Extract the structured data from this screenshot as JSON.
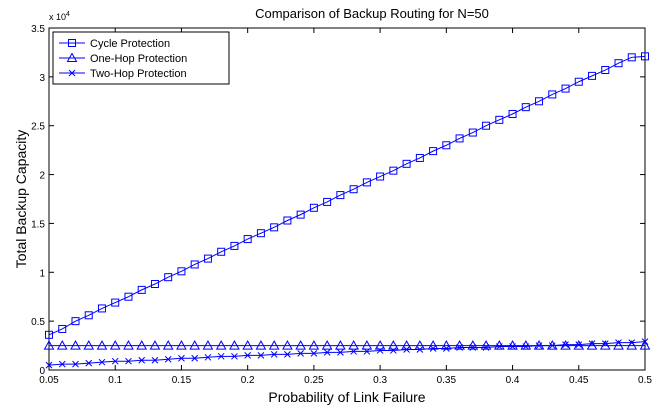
{
  "chart_data": {
    "type": "line",
    "title": "Comparison of Backup Routing for N=50",
    "xlabel": "Probability of Link Failure",
    "ylabel": "Total Backup Capacity",
    "y_exponent_label": "x 10",
    "y_exponent_power": "4",
    "xlim": [
      0.05,
      0.5
    ],
    "ylim": [
      0,
      3.5
    ],
    "xticks": [
      0.05,
      0.1,
      0.15,
      0.2,
      0.25,
      0.3,
      0.35,
      0.4,
      0.45,
      0.5
    ],
    "xtick_labels": [
      "0.05",
      "0.1",
      "0.15",
      "0.2",
      "0.25",
      "0.3",
      "0.35",
      "0.4",
      "0.45",
      "0.5"
    ],
    "yticks": [
      0,
      0.5,
      1,
      1.5,
      2,
      2.5,
      3,
      3.5
    ],
    "ytick_labels": [
      "0",
      "0.5",
      "1",
      "1.5",
      "2",
      "2.5",
      "3",
      "3.5"
    ],
    "grid": false,
    "legend_position": "top-left",
    "color": "#0000ff",
    "x": [
      0.05,
      0.06,
      0.07,
      0.08,
      0.09,
      0.1,
      0.11,
      0.12,
      0.13,
      0.14,
      0.15,
      0.16,
      0.17,
      0.18,
      0.19,
      0.2,
      0.21,
      0.22,
      0.23,
      0.24,
      0.25,
      0.26,
      0.27,
      0.28,
      0.29,
      0.3,
      0.31,
      0.32,
      0.33,
      0.34,
      0.35,
      0.36,
      0.37,
      0.38,
      0.39,
      0.4,
      0.41,
      0.42,
      0.43,
      0.44,
      0.45,
      0.46,
      0.47,
      0.48,
      0.49,
      0.5
    ],
    "series": [
      {
        "name": "Cycle Protection",
        "marker": "square",
        "values": [
          0.36,
          0.42,
          0.5,
          0.56,
          0.63,
          0.69,
          0.75,
          0.82,
          0.88,
          0.95,
          1.01,
          1.08,
          1.14,
          1.21,
          1.27,
          1.34,
          1.4,
          1.46,
          1.53,
          1.59,
          1.66,
          1.72,
          1.79,
          1.85,
          1.92,
          1.98,
          2.04,
          2.11,
          2.17,
          2.24,
          2.3,
          2.37,
          2.43,
          2.5,
          2.56,
          2.62,
          2.69,
          2.75,
          2.82,
          2.88,
          2.95,
          3.01,
          3.07,
          3.14,
          3.2,
          3.21
        ]
      },
      {
        "name": "One-Hop Protection",
        "marker": "triangle",
        "values": [
          0.25,
          0.25,
          0.25,
          0.25,
          0.25,
          0.25,
          0.25,
          0.25,
          0.25,
          0.25,
          0.25,
          0.25,
          0.25,
          0.25,
          0.25,
          0.25,
          0.25,
          0.25,
          0.25,
          0.25,
          0.25,
          0.25,
          0.25,
          0.25,
          0.25,
          0.25,
          0.25,
          0.25,
          0.25,
          0.25,
          0.25,
          0.25,
          0.25,
          0.25,
          0.25,
          0.25,
          0.25,
          0.25,
          0.25,
          0.25,
          0.25,
          0.25,
          0.25,
          0.25,
          0.25,
          0.25
        ]
      },
      {
        "name": "Two-Hop Protection",
        "marker": "x",
        "values": [
          0.05,
          0.06,
          0.06,
          0.07,
          0.08,
          0.09,
          0.09,
          0.1,
          0.1,
          0.11,
          0.12,
          0.12,
          0.13,
          0.14,
          0.14,
          0.15,
          0.15,
          0.16,
          0.16,
          0.17,
          0.17,
          0.18,
          0.18,
          0.19,
          0.19,
          0.2,
          0.2,
          0.21,
          0.21,
          0.22,
          0.22,
          0.23,
          0.23,
          0.23,
          0.24,
          0.24,
          0.24,
          0.25,
          0.25,
          0.26,
          0.26,
          0.27,
          0.27,
          0.28,
          0.28,
          0.29
        ]
      }
    ]
  }
}
